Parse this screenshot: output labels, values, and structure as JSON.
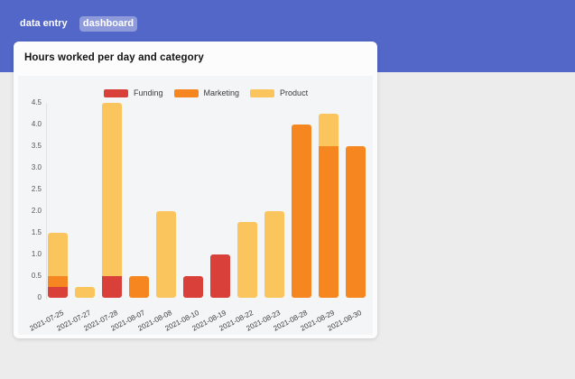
{
  "navbar": {
    "tabs": [
      {
        "label": "data entry",
        "active": false
      },
      {
        "label": "dashboard",
        "active": true
      }
    ]
  },
  "card": {
    "title": "Hours worked per day and category"
  },
  "colors": {
    "navbar_bg": "#5267c7",
    "active_tab_bg": "#8e9ad9",
    "page_bg": "#ececec",
    "card_bg": "#fcfcfc",
    "canvas_bg": "#f4f5f6",
    "funding": "#d9403a",
    "marketing": "#f6861f",
    "product": "#fbc55e"
  },
  "chart_data": {
    "type": "bar",
    "stacked": true,
    "title": "Hours worked per day and category",
    "xlabel": "",
    "ylabel": "",
    "ylim": [
      0,
      4.5
    ],
    "yticks": [
      0,
      0.5,
      1.0,
      1.5,
      2.0,
      2.5,
      3.0,
      3.5,
      4.0,
      4.5
    ],
    "ytick_labels": [
      "0",
      "0.5",
      "1.0",
      "1.5",
      "2.0",
      "2.5",
      "3.0",
      "3.5",
      "4.0",
      "4.5"
    ],
    "grid": false,
    "legend_position": "top",
    "categories": [
      "2021-07-25",
      "2021-07-27",
      "2021-07-28",
      "2021-08-07",
      "2021-08-08",
      "2021-08-10",
      "2021-08-19",
      "2021-08-22",
      "2021-08-23",
      "2021-08-28",
      "2021-08-29",
      "2021-08-30"
    ],
    "series": [
      {
        "name": "Funding",
        "color": "#d9403a",
        "values": [
          0.25,
          0,
          0.5,
          0,
          0,
          0.5,
          1.0,
          0,
          0,
          0,
          0,
          0
        ]
      },
      {
        "name": "Marketing",
        "color": "#f6861f",
        "values": [
          0.25,
          0,
          0,
          0.5,
          0,
          0,
          0,
          0,
          0,
          4.0,
          3.5,
          3.5
        ]
      },
      {
        "name": "Product",
        "color": "#fbc55e",
        "values": [
          1.0,
          0.25,
          4.0,
          0,
          2.0,
          0,
          0,
          1.75,
          2.0,
          0,
          0.75,
          0
        ]
      }
    ],
    "totals": [
      1.5,
      0.25,
      4.5,
      0.5,
      2.0,
      0.5,
      1.0,
      1.75,
      2.0,
      4.0,
      4.25,
      3.5
    ]
  }
}
